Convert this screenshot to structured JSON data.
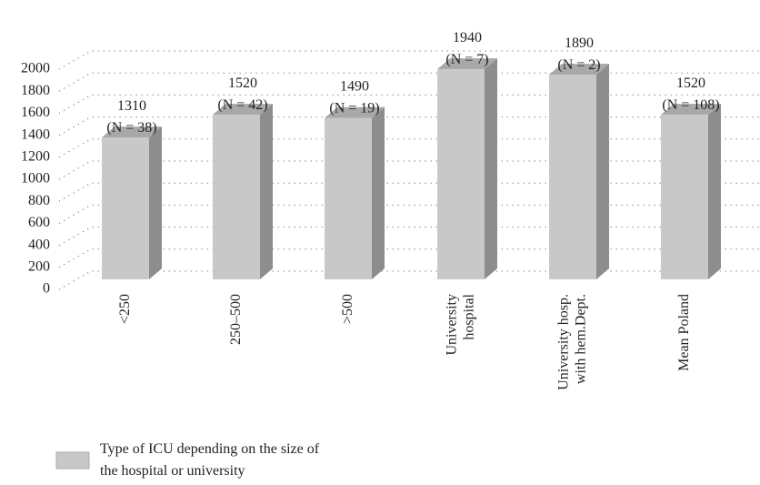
{
  "chart_data": {
    "type": "bar3d",
    "categories": [
      "<250",
      "250–500",
      ">500",
      "University hospital",
      "University hosp. with hem.Dept.",
      "Mean Poland"
    ],
    "series": [
      {
        "name": "Type of ICU depending on the size of the hospital or university",
        "color": "#c8c8c8",
        "values": [
          1310,
          1520,
          1490,
          1940,
          1890,
          1520
        ]
      }
    ],
    "annotations": [
      "(N = 38)",
      "(N = 42)",
      "(N = 19)",
      "(N = 7)",
      "(N = 2)",
      "(N = 108)"
    ],
    "ylim": [
      0,
      2000
    ],
    "yticks": [
      0,
      200,
      400,
      600,
      800,
      1000,
      1200,
      1400,
      1600,
      1800,
      2000
    ],
    "grid": true,
    "legend": "bottom-left"
  }
}
